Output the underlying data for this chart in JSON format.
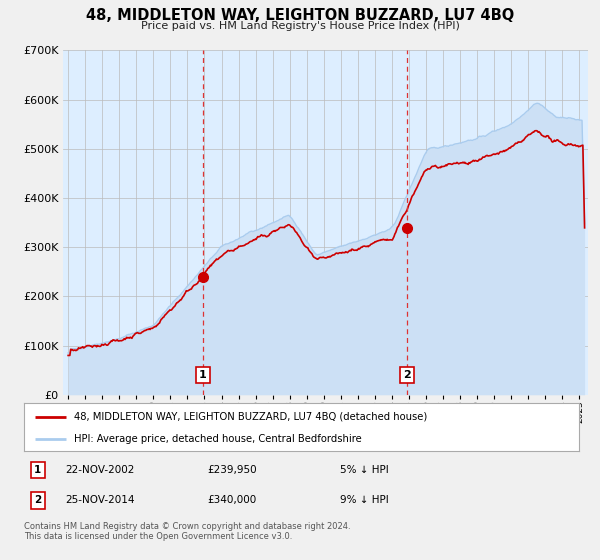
{
  "title": "48, MIDDLETON WAY, LEIGHTON BUZZARD, LU7 4BQ",
  "subtitle": "Price paid vs. HM Land Registry's House Price Index (HPI)",
  "legend_label_red": "48, MIDDLETON WAY, LEIGHTON BUZZARD, LU7 4BQ (detached house)",
  "legend_label_blue": "HPI: Average price, detached house, Central Bedfordshire",
  "transaction1_date": "22-NOV-2002",
  "transaction1_price": "£239,950",
  "transaction1_hpi": "5% ↓ HPI",
  "transaction1_year": 2002.9,
  "transaction1_value": 239950,
  "transaction2_date": "25-NOV-2014",
  "transaction2_price": "£340,000",
  "transaction2_hpi": "9% ↓ HPI",
  "transaction2_year": 2014.9,
  "transaction2_value": 340000,
  "footer": "Contains HM Land Registry data © Crown copyright and database right 2024.\nThis data is licensed under the Open Government Licence v3.0.",
  "red_color": "#cc0000",
  "blue_color": "#aaccee",
  "blue_fill": "#cce0f5",
  "bg_color": "#ddeeff",
  "grid_color": "#bbbbbb",
  "vline_color": "#dd3333",
  "marker_color": "#cc0000",
  "box_edge_color": "#cc0000",
  "ylim": [
    0,
    700000
  ],
  "yticks": [
    0,
    100000,
    200000,
    300000,
    400000,
    500000,
    600000,
    700000
  ],
  "xlim_start": 1994.7,
  "xlim_end": 2025.5,
  "xticks": [
    1995,
    1996,
    1997,
    1998,
    1999,
    2000,
    2001,
    2002,
    2003,
    2004,
    2005,
    2006,
    2007,
    2008,
    2009,
    2010,
    2011,
    2012,
    2013,
    2014,
    2015,
    2016,
    2017,
    2018,
    2019,
    2020,
    2021,
    2022,
    2023,
    2024,
    2025
  ]
}
